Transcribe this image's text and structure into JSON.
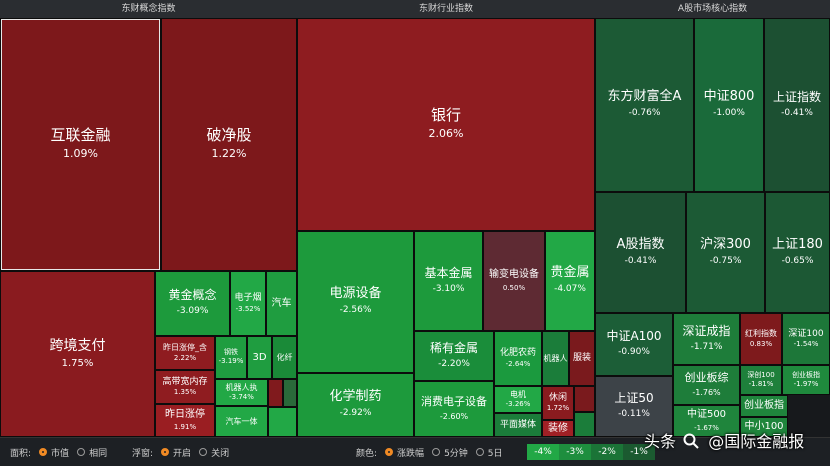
{
  "headers": {
    "concept": "东财概念指数",
    "industry": "东财行业指数",
    "core": "A股市场核心指数"
  },
  "colors": {
    "up_dark": "#7e1a1c",
    "up_mid": "#8e1c20",
    "up_light": "#a82327",
    "down_light": "#2aa84a",
    "down_mid": "#1e7d3a",
    "down_dark": "#1b5130",
    "neutral": "#3d4348",
    "accent": "#f08a24"
  },
  "tiles": [
    {
      "id": "hulian",
      "name": "互联金融",
      "pct": "1.09%",
      "color": "#7d181b",
      "fs": 15,
      "sel": true
    },
    {
      "id": "pojing",
      "name": "破净股",
      "pct": "1.22%",
      "color": "#7d181b",
      "fs": 15
    },
    {
      "id": "kuajing",
      "name": "跨境支付",
      "pct": "1.75%",
      "color": "#8a1b1f",
      "fs": 14
    },
    {
      "id": "huangjin",
      "name": "黄金概念",
      "pct": "-3.09%",
      "color": "#1d9a3c",
      "fs": 12
    },
    {
      "id": "dianziyan",
      "name": "电子烟",
      "pct": "-3.52%",
      "color": "#22a846",
      "fs": 9
    },
    {
      "id": "qiche",
      "name": "汽车",
      "pct": "",
      "color": "#1f9d40",
      "fs": 10
    },
    {
      "id": "zuori1",
      "name": "昨日涨停_含",
      "pct": "2.22%",
      "color": "#8f1c20",
      "fs": 8
    },
    {
      "id": "gangtie",
      "name": "钢铁",
      "pct": "-3.19%",
      "color": "#1f9d40",
      "fs": 7
    },
    {
      "id": "sand",
      "name": "3D",
      "pct": "",
      "color": "#1f9d40",
      "fs": 10
    },
    {
      "id": "huaxian",
      "name": "化纤",
      "pct": "",
      "color": "#1a8a38",
      "fs": 8
    },
    {
      "id": "gaoduan",
      "name": "高带宽内存",
      "pct": "1.35%",
      "color": "#8f1c20",
      "fs": 9
    },
    {
      "id": "jiqirenz",
      "name": "机器人执",
      "pct": "-3.74%",
      "color": "#22a846",
      "fs": 8
    },
    {
      "id": "zuori2",
      "name": "昨日涨停",
      "pct": "1.91%",
      "color": "#9a1e22",
      "fs": 10
    },
    {
      "id": "qiche1",
      "name": "汽车一体",
      "pct": "",
      "color": "#22a846",
      "fs": 8
    },
    {
      "id": "mini1",
      "name": "",
      "pct": "",
      "color": "#801a1d",
      "fs": 8
    },
    {
      "id": "mini2",
      "name": "",
      "pct": "",
      "color": "#2a6a3a",
      "fs": 8
    },
    {
      "id": "mini3",
      "name": "",
      "pct": "",
      "color": "#22a846",
      "fs": 8
    },
    {
      "id": "yinhang",
      "name": "银行",
      "pct": "2.06%",
      "color": "#8e1c20",
      "fs": 15
    },
    {
      "id": "dianyuan",
      "name": "电源设备",
      "pct": "-2.56%",
      "color": "#1d9a3c",
      "fs": 13
    },
    {
      "id": "jiben",
      "name": "基本金属",
      "pct": "-3.10%",
      "color": "#1d9a3c",
      "fs": 12
    },
    {
      "id": "shubian",
      "name": "输变电设备",
      "pct": "0.50%",
      "color": "#5e2a33",
      "fs": 10
    },
    {
      "id": "guijin",
      "name": "贵金属",
      "pct": "-4.07%",
      "color": "#22a846",
      "fs": 13
    },
    {
      "id": "xitu",
      "name": "稀有金属",
      "pct": "-2.20%",
      "color": "#1a8d3a",
      "fs": 12
    },
    {
      "id": "huafei",
      "name": "化肥农药",
      "pct": "-2.64%",
      "color": "#1b9a3e",
      "fs": 9
    },
    {
      "id": "jiqiren",
      "name": "机器人",
      "pct": "",
      "color": "#1b7d3a",
      "fs": 8
    },
    {
      "id": "fuzhuang",
      "name": "服装",
      "pct": "",
      "color": "#7a1a1d",
      "fs": 9
    },
    {
      "id": "huaxue",
      "name": "化学制药",
      "pct": "-2.92%",
      "color": "#1d9a3c",
      "fs": 13
    },
    {
      "id": "xiaofei",
      "name": "消费电子设备",
      "pct": "-2.60%",
      "color": "#1d9a3c",
      "fs": 11
    },
    {
      "id": "dianji",
      "name": "电机",
      "pct": "-3.26%",
      "color": "#22a846",
      "fs": 8
    },
    {
      "id": "xiuxian",
      "name": "休闲",
      "pct": "1.72%",
      "color": "#8a1b1f",
      "fs": 9
    },
    {
      "id": "pingmian",
      "name": "平面媒体",
      "pct": "",
      "color": "#1b7d3a",
      "fs": 9
    },
    {
      "id": "zhuangxiu",
      "name": "装修",
      "pct": "",
      "color": "#a02025",
      "fs": 10
    },
    {
      "id": "minir",
      "name": "",
      "pct": "",
      "color": "#7a1a1d",
      "fs": 8
    },
    {
      "id": "minig",
      "name": "",
      "pct": "",
      "color": "#1b7d3a",
      "fs": 8
    },
    {
      "id": "dongfang",
      "name": "东方财富全A",
      "pct": "-0.76%",
      "color": "#1c5a35",
      "fs": 13
    },
    {
      "id": "zz800",
      "name": "中证800",
      "pct": "-1.00%",
      "color": "#1a6a3a",
      "fs": 13
    },
    {
      "id": "szzs",
      "name": "上证指数",
      "pct": "-0.41%",
      "color": "#1c5032",
      "fs": 12
    },
    {
      "id": "agu",
      "name": "A股指数",
      "pct": "-0.41%",
      "color": "#1c5032",
      "fs": 13
    },
    {
      "id": "hs300",
      "name": "沪深300",
      "pct": "-0.75%",
      "color": "#1c5a35",
      "fs": 13
    },
    {
      "id": "sz180",
      "name": "上证180",
      "pct": "-0.65%",
      "color": "#1c5834",
      "fs": 13
    },
    {
      "id": "zza100",
      "name": "中证A100",
      "pct": "-0.90%",
      "color": "#1c5e37",
      "fs": 12
    },
    {
      "id": "szcz",
      "name": "深证成指",
      "pct": "-1.71%",
      "color": "#1e7d3a",
      "fs": 12
    },
    {
      "id": "hongli",
      "name": "红利指数",
      "pct": "0.83%",
      "color": "#7e1a1c",
      "fs": 8
    },
    {
      "id": "sz100",
      "name": "深证100",
      "pct": "-1.54%",
      "color": "#1d7739",
      "fs": 9
    },
    {
      "id": "sz50",
      "name": "上证50",
      "pct": "-0.11%",
      "color": "#3d4348",
      "fs": 12
    },
    {
      "id": "cyb",
      "name": "创业板综",
      "pct": "-1.76%",
      "color": "#1e7d3a",
      "fs": 11
    },
    {
      "id": "sc100",
      "name": "深创100",
      "pct": "-1.81%",
      "color": "#1e803b",
      "fs": 7
    },
    {
      "id": "cybzs",
      "name": "创业板指",
      "pct": "-1.97%",
      "color": "#1f8a3d",
      "fs": 7
    },
    {
      "id": "zz500",
      "name": "中证500",
      "pct": "-1.67%",
      "color": "#1f853c",
      "fs": 10
    },
    {
      "id": "cybz2",
      "name": "创业板指",
      "pct": "",
      "color": "#1f853c",
      "fs": 10
    },
    {
      "id": "zx100",
      "name": "中小100",
      "pct": "",
      "color": "#1f853c",
      "fs": 10
    }
  ],
  "bottom": {
    "area_label": "面积:",
    "area_opt1": "市值",
    "area_opt2": "相同",
    "float_label": "浮窗:",
    "float_opt1": "开启",
    "float_opt2": "关闭",
    "color_label": "颜色:",
    "color_opt1": "涨跌幅",
    "color_opt2": "5分钟",
    "color_opt3": "5日",
    "legend": [
      "-4%",
      "-3%",
      "-2%",
      "-1%"
    ],
    "legend_colors": [
      "#22a846",
      "#1e8e3e",
      "#1b7437",
      "#1b5a30"
    ]
  },
  "watermark": {
    "text1": "头条",
    "text2": "@国际金融报"
  }
}
